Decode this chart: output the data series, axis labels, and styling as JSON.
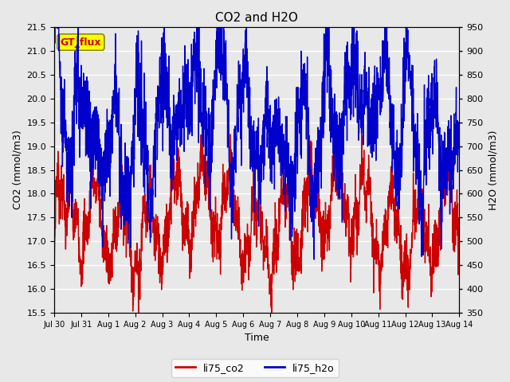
{
  "title": "CO2 and H2O",
  "xlabel": "Time",
  "ylabel_left": "CO2 (mmol/m3)",
  "ylabel_right": "H2O (mmol/m3)",
  "ylim_left": [
    15.5,
    21.5
  ],
  "ylim_right": [
    350,
    950
  ],
  "co2_color": "#cc0000",
  "h2o_color": "#0000cc",
  "fig_facecolor": "#e8e8e8",
  "plot_facecolor": "#e8e8e8",
  "legend_labels": [
    "li75_co2",
    "li75_h2o"
  ],
  "annotation_text": "GT_flux",
  "annotation_color": "#cc0000",
  "annotation_bg": "#ffff00",
  "annotation_edge": "#888800",
  "x_tick_labels": [
    "Jul 30",
    "Jul 31",
    "Aug 1",
    "Aug 2",
    "Aug 3",
    "Aug 4",
    "Aug 5",
    "Aug 6",
    "Aug 7",
    "Aug 8",
    "Aug 9",
    "Aug 10",
    "Aug 11",
    "Aug 12",
    "Aug 13",
    "Aug 14"
  ],
  "grid_color": "#ffffff",
  "linewidth": 1.0,
  "seed": 7
}
